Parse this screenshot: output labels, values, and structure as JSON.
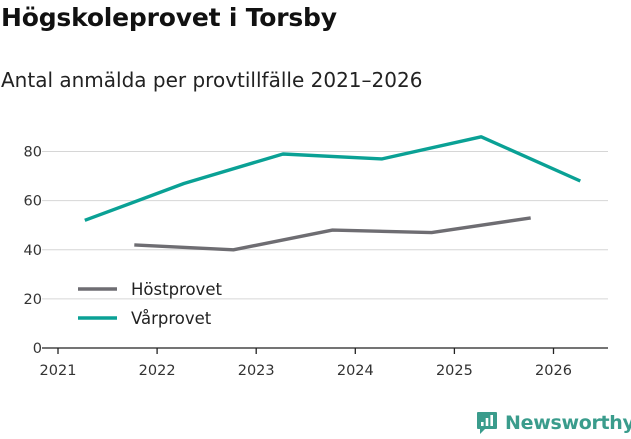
{
  "chart_data": {
    "type": "line",
    "title": "Högskoleprovet i Torsby",
    "subtitle": "Antal anmälda per provtillfälle 2021–2026",
    "xlabel": "",
    "ylabel": "",
    "xlim": [
      2021,
      2026.55
    ],
    "ylim": [
      0,
      90
    ],
    "x_ticks": [
      2021,
      2022,
      2023,
      2024,
      2025,
      2026
    ],
    "y_ticks": [
      0,
      20,
      40,
      60,
      80
    ],
    "grid": true,
    "legend_position": "lower-left",
    "series": [
      {
        "name": "Höstprovet",
        "color": "#6e6d72",
        "x": [
          2021.77,
          2022.77,
          2023.77,
          2024.77,
          2025.77
        ],
        "y": [
          42,
          40,
          48,
          47,
          53
        ]
      },
      {
        "name": "Vårprovet",
        "color": "#0aa195",
        "x": [
          2021.27,
          2022.27,
          2023.27,
          2024.27,
          2025.27,
          2026.27
        ],
        "y": [
          52,
          67,
          79,
          77,
          86,
          68
        ]
      }
    ]
  },
  "brand": {
    "name": "Newsworthy",
    "color": "#3a9c8c"
  }
}
